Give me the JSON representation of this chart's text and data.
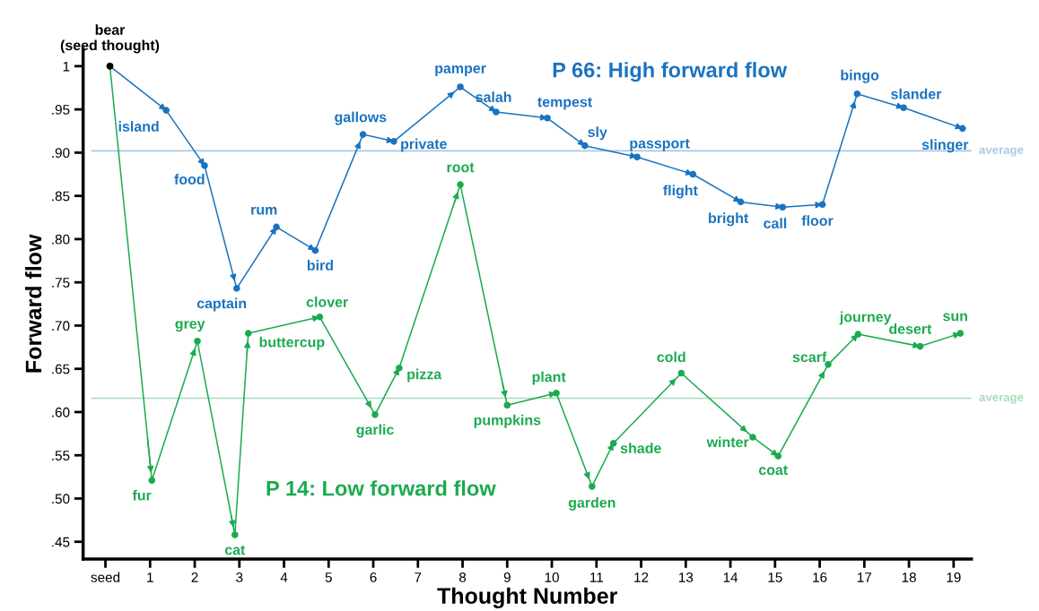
{
  "chart_data": {
    "type": "line",
    "xlabel": "Thought Number",
    "ylabel": "Forward flow",
    "xlim": [
      -0.5,
      19.4
    ],
    "ylim": [
      0.43,
      1.02
    ],
    "xticks": [
      {
        "value": 0,
        "label": "seed"
      },
      1,
      2,
      3,
      4,
      5,
      6,
      7,
      8,
      9,
      10,
      11,
      12,
      13,
      14,
      15,
      16,
      17,
      18,
      19
    ],
    "yticks": [
      {
        "value": 0.45,
        "label": ".45"
      },
      {
        "value": 0.5,
        "label": ".50"
      },
      {
        "value": 0.55,
        "label": ".55"
      },
      {
        "value": 0.6,
        "label": ".60"
      },
      {
        "value": 0.65,
        "label": ".65"
      },
      {
        "value": 0.7,
        "label": ".70"
      },
      {
        "value": 0.75,
        "label": ".75"
      },
      {
        "value": 0.8,
        "label": ".80"
      },
      {
        "value": 0.85,
        "label": ".85"
      },
      {
        "value": 0.9,
        "label": ".90"
      },
      {
        "value": 0.95,
        "label": ".95"
      },
      {
        "value": 1,
        "label": "1"
      }
    ],
    "marker": "circle",
    "legend": false,
    "grid": false,
    "series": [
      {
        "name": "P 66: High forward flow",
        "color": "#1a73c0",
        "x": [
          0.1,
          1.36,
          2.22,
          2.94,
          3.83,
          4.7,
          5.77,
          6.46,
          7.95,
          8.75,
          9.9,
          10.74,
          11.91,
          13.16,
          14.23,
          15.17,
          16.06,
          16.84,
          17.88,
          19.2
        ],
        "values": [
          1.0,
          0.949,
          0.885,
          0.743,
          0.814,
          0.787,
          0.921,
          0.913,
          0.976,
          0.947,
          0.94,
          0.908,
          0.895,
          0.875,
          0.843,
          0.837,
          0.84,
          0.968,
          0.952,
          0.928
        ],
        "colors": [
          "#000000",
          "#1a73c0",
          "#1a73c0",
          "#1a73c0",
          "#1a73c0",
          "#1a73c0",
          "#1a73c0",
          "#1a73c0",
          "#1a73c0",
          "#1a73c0",
          "#1a73c0",
          "#1a73c0",
          "#1a73c0",
          "#1a73c0",
          "#1a73c0",
          "#1a73c0",
          "#1a73c0",
          "#1a73c0",
          "#1a73c0",
          "#1a73c0"
        ],
        "value_labels": [
          "bear\n(seed thought)",
          "island",
          "food",
          "captain",
          "rum",
          "bird",
          "gallows",
          "private",
          "pamper",
          "salah",
          "tempest",
          "sly",
          "passport",
          "flight",
          "bright",
          "call",
          "floor",
          "bingo",
          "slander",
          "slinger"
        ]
      },
      {
        "name": "P 14: Low forward flow",
        "color": "#1bab4f",
        "x": [
          0.1,
          1.04,
          2.06,
          2.9,
          3.2,
          4.8,
          6.04,
          6.58,
          7.95,
          9.0,
          10.1,
          10.9,
          11.38,
          12.9,
          14.5,
          15.07,
          16.19,
          16.86,
          18.25,
          19.15
        ],
        "values": [
          1.0,
          0.521,
          0.682,
          0.458,
          0.691,
          0.71,
          0.597,
          0.651,
          0.863,
          0.608,
          0.622,
          0.514,
          0.564,
          0.645,
          0.571,
          0.549,
          0.655,
          0.69,
          0.676,
          0.691
        ],
        "colors": [
          "#000000",
          "#1bab4f",
          "#1bab4f",
          "#1bab4f",
          "#1bab4f",
          "#1bab4f",
          "#1bab4f",
          "#1bab4f",
          "#1bab4f",
          "#1bab4f",
          "#1bab4f",
          "#1bab4f",
          "#1bab4f",
          "#1bab4f",
          "#1bab4f",
          "#1bab4f",
          "#1bab4f",
          "#1bab4f",
          "#1bab4f",
          "#1bab4f"
        ],
        "value_labels": [
          null,
          "fur",
          "grey",
          "cat",
          "buttercup",
          "clover",
          "garlic",
          "pizza",
          "root",
          "pumpkins",
          "plant",
          "garden",
          "shade",
          "cold",
          "winter",
          "coat",
          "scarf",
          "journey",
          "desert",
          "sun"
        ]
      }
    ],
    "ref_lines": [
      {
        "axis": "y",
        "value": 0.902,
        "label": "average",
        "color": "#a9c8e8"
      },
      {
        "axis": "y",
        "value": 0.616,
        "label": "average",
        "color": "#a8dcbc"
      }
    ]
  }
}
